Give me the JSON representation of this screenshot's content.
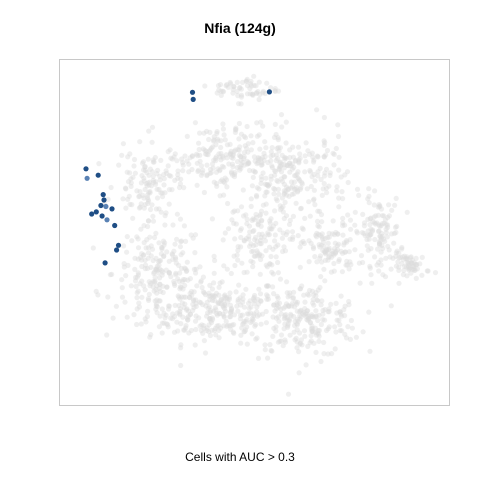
{
  "chart_data": {
    "type": "scatter",
    "title": "Nfia (124g)",
    "xlabel": "Cells with AUC > 0.3",
    "ylabel": "",
    "axes_visible": false,
    "grid": false,
    "colors": {
      "background_cells": "#dcdcdc",
      "highlight_cells": "#1f4e85",
      "highlight_cells_light": "#5a82b4",
      "frame": "#c8c8c8"
    },
    "background_clusters": [
      {
        "name": "",
        "cx": 0.4,
        "cy": 0.73,
        "sx": 0.15,
        "sy": 0.08,
        "n": 280
      },
      {
        "name": "",
        "cx": 0.25,
        "cy": 0.62,
        "sx": 0.1,
        "sy": 0.12,
        "n": 200
      },
      {
        "name": "",
        "cx": 0.63,
        "cy": 0.76,
        "sx": 0.12,
        "sy": 0.09,
        "n": 220
      },
      {
        "name": "",
        "cx": 0.5,
        "cy": 0.52,
        "sx": 0.07,
        "sy": 0.09,
        "n": 120
      },
      {
        "name": "",
        "cx": 0.7,
        "cy": 0.55,
        "sx": 0.06,
        "sy": 0.07,
        "n": 100
      },
      {
        "name": "",
        "cx": 0.82,
        "cy": 0.5,
        "sx": 0.05,
        "sy": 0.08,
        "n": 110
      },
      {
        "name": "",
        "cx": 0.91,
        "cy": 0.6,
        "sx": 0.04,
        "sy": 0.03,
        "n": 60
      },
      {
        "name": "",
        "cx": 0.6,
        "cy": 0.35,
        "sx": 0.12,
        "sy": 0.12,
        "n": 240
      },
      {
        "name": "",
        "cx": 0.22,
        "cy": 0.36,
        "sx": 0.07,
        "sy": 0.08,
        "n": 110
      },
      {
        "name": "",
        "cx": 0.41,
        "cy": 0.28,
        "sx": 0.12,
        "sy": 0.08,
        "n": 200
      },
      {
        "name": "",
        "cx": 0.48,
        "cy": 0.08,
        "sx": 0.07,
        "sy": 0.03,
        "n": 60
      }
    ],
    "highlight_points": [
      {
        "x": 0.338,
        "y": 0.911
      },
      {
        "x": 0.34,
        "y": 0.89
      },
      {
        "x": 0.539,
        "y": 0.912
      },
      {
        "x": 0.06,
        "y": 0.686
      },
      {
        "x": 0.063,
        "y": 0.658
      },
      {
        "x": 0.092,
        "y": 0.667
      },
      {
        "x": 0.105,
        "y": 0.61
      },
      {
        "x": 0.107,
        "y": 0.594
      },
      {
        "x": 0.099,
        "y": 0.578
      },
      {
        "x": 0.112,
        "y": 0.575
      },
      {
        "x": 0.128,
        "y": 0.568
      },
      {
        "x": 0.075,
        "y": 0.553
      },
      {
        "x": 0.087,
        "y": 0.559
      },
      {
        "x": 0.102,
        "y": 0.547
      },
      {
        "x": 0.115,
        "y": 0.536
      },
      {
        "x": 0.135,
        "y": 0.519
      },
      {
        "x": 0.145,
        "y": 0.461
      },
      {
        "x": 0.14,
        "y": 0.447
      },
      {
        "x": 0.11,
        "y": 0.409
      }
    ],
    "xlim": [
      0,
      1
    ],
    "ylim": [
      0,
      1
    ]
  }
}
